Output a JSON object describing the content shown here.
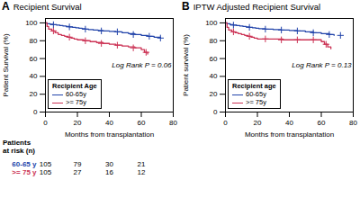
{
  "chart_data": [
    {
      "type": "line",
      "panel_label": "A",
      "title": "Recipient Survival",
      "xlabel": "Months from transplantation",
      "ylabel": "Patient Survival (%)",
      "annotation": "Log Rank P = 0.06",
      "legend_title": "Recipient Age",
      "legend": "lower left",
      "xlim": [
        0,
        80
      ],
      "ylim": [
        0,
        105
      ],
      "xticks": [
        0,
        20,
        40,
        60,
        80
      ],
      "yticks": [
        0,
        20,
        40,
        60,
        80,
        100
      ],
      "grid": false,
      "series": [
        {
          "name": "60-65y",
          "color": "#2244aa",
          "x": [
            0,
            1,
            3,
            5,
            7,
            9,
            11,
            13,
            15,
            17,
            19,
            21,
            23,
            25,
            27,
            30,
            33,
            36,
            40,
            44,
            48,
            52,
            56,
            60,
            64,
            68,
            72
          ],
          "values": [
            100,
            99,
            98.5,
            98,
            97.5,
            97,
            96.5,
            96,
            95.5,
            95,
            94.5,
            94,
            93.5,
            93,
            92.5,
            92,
            91.5,
            91,
            90.5,
            90,
            89,
            88,
            87,
            86,
            85,
            84,
            83
          ],
          "censored": {
            "marker": "plus",
            "x": [
              5,
              15,
              25,
              35,
              45,
              55,
              65,
              72
            ],
            "values": [
              98,
              95.5,
              93,
              91,
              90,
              87,
              85,
              83
            ]
          }
        },
        {
          "name": ">= 75y",
          "color": "#cc3355",
          "x": [
            0,
            1,
            2,
            4,
            6,
            8,
            10,
            12,
            14,
            16,
            18,
            20,
            24,
            28,
            32,
            36,
            40,
            44,
            48,
            52,
            56,
            60,
            62,
            64
          ],
          "values": [
            100,
            96,
            93,
            91,
            89,
            87,
            86,
            85,
            84,
            83,
            82,
            81,
            80,
            79,
            78,
            77,
            76,
            75,
            74,
            73,
            72,
            70,
            67,
            65
          ],
          "censored": {
            "marker": "plus",
            "x": [
              5,
              15,
              25,
              35,
              45,
              55,
              63
            ],
            "values": [
              91,
              84,
              80,
              77,
              75,
              72,
              67
            ]
          }
        }
      ],
      "at_risk": {
        "labels": [
          "Patients",
          "at risk (n)"
        ],
        "x": [
          0,
          20,
          40,
          60
        ],
        "series": [
          {
            "name": "60-65 y",
            "color": "#2244aa",
            "values": [
              105,
              79,
              30,
              21
            ]
          },
          {
            "name": ">= 75 y",
            "color": "#cc3355",
            "values": [
              105,
              27,
              16,
              12
            ]
          }
        ]
      }
    },
    {
      "type": "line",
      "panel_label": "B",
      "title": "IPTW Adjusted Recipient Survival",
      "xlabel": "Months from transplantation",
      "ylabel": "Patient survival (%)",
      "annotation": "Log Rank P = 0.13",
      "legend_title": "Recipient age",
      "legend": "lower left",
      "xlim": [
        0,
        80
      ],
      "ylim": [
        0,
        105
      ],
      "xticks": [
        0,
        20,
        40,
        60,
        80
      ],
      "yticks": [
        0,
        20,
        40,
        60,
        80,
        100
      ],
      "grid": false,
      "series": [
        {
          "name": "60-65y",
          "color": "#2244aa",
          "x": [
            0,
            1,
            3,
            5,
            7,
            9,
            11,
            13,
            15,
            17,
            19,
            21,
            25,
            30,
            35,
            40,
            45,
            50,
            55,
            60,
            65,
            68
          ],
          "values": [
            100,
            99,
            98,
            97.5,
            97,
            96.5,
            96,
            95.5,
            95,
            94.5,
            94,
            93.5,
            93,
            92.5,
            92,
            91.5,
            91,
            90,
            89,
            88,
            87,
            86
          ],
          "censored": {
            "marker": "plus",
            "x": [
              5,
              15,
              25,
              35,
              45,
              55,
              65,
              72
            ],
            "values": [
              97.5,
              95,
              93,
              92,
              91,
              89,
              87,
              86
            ]
          }
        },
        {
          "name": ">= 75y",
          "color": "#cc3355",
          "x": [
            0,
            1,
            2,
            4,
            6,
            8,
            10,
            12,
            14,
            16,
            18,
            20,
            24,
            28,
            32,
            36,
            40,
            44,
            48,
            52,
            56,
            60,
            62,
            64,
            66
          ],
          "values": [
            100,
            95,
            92,
            90,
            89,
            88,
            87,
            86,
            85,
            84,
            83,
            82,
            82,
            82,
            82,
            81,
            81,
            81,
            81,
            81,
            81,
            79,
            76,
            73,
            71
          ],
          "censored": {
            "marker": "plus",
            "x": [
              5,
              15,
              25,
              35,
              45,
              55,
              63
            ],
            "values": [
              90,
              85,
              82,
              81,
              81,
              81,
              76
            ]
          }
        }
      ]
    }
  ]
}
